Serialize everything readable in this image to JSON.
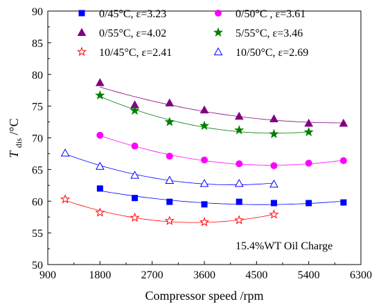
{
  "chart_data": {
    "type": "scatter",
    "title": "",
    "xlabel": "Compressor speed /rpm",
    "ylabel_main": "T",
    "ylabel_sub": "dis",
    "ylabel_unit": " /°C",
    "xlim": [
      900,
      6300
    ],
    "ylim": [
      50,
      90
    ],
    "xticks": [
      900,
      1800,
      2700,
      3600,
      4500,
      5400,
      6300
    ],
    "yticks": [
      50,
      55,
      60,
      65,
      70,
      75,
      80,
      85,
      90
    ],
    "xtick_labels": [
      "900",
      "1800",
      "2700",
      "3600",
      "4500",
      "5400",
      "6300"
    ],
    "ytick_labels": [
      "50",
      "55",
      "60",
      "65",
      "70",
      "75",
      "80",
      "85",
      "90"
    ],
    "grid": false,
    "legend_position": "top",
    "annotation": "15.4%WT Oil Charge",
    "series": [
      {
        "name": "0/45°C, ε=3.23",
        "marker": "square",
        "color": "#0000ff",
        "fill": true,
        "x": [
          1800,
          2400,
          3000,
          3600,
          4200,
          4800,
          5400,
          6000
        ],
        "y": [
          62.0,
          60.5,
          59.9,
          59.5,
          59.9,
          59.7,
          59.7,
          59.8
        ]
      },
      {
        "name": "0/50°C , ε=3.61",
        "marker": "circle",
        "color": "#ff00ff",
        "fill": true,
        "x": [
          1800,
          2400,
          3000,
          3600,
          4200,
          4800,
          5400,
          6000
        ],
        "y": [
          70.4,
          68.7,
          67.1,
          66.5,
          65.9,
          65.6,
          66.0,
          66.4
        ]
      },
      {
        "name": "0/55°C, ε=4.02",
        "marker": "triangle",
        "color": "#800080",
        "fill": true,
        "x": [
          1800,
          2400,
          3000,
          3600,
          4200,
          4800,
          5400,
          6000
        ],
        "y": [
          78.7,
          75.2,
          75.5,
          74.4,
          73.4,
          73.0,
          72.3,
          72.3
        ]
      },
      {
        "name": "5/55°C, ε=3.46",
        "marker": "star",
        "color": "#008000",
        "fill": true,
        "x": [
          1800,
          2400,
          3000,
          3600,
          4200,
          4800,
          5400
        ],
        "y": [
          76.7,
          74.3,
          72.5,
          71.9,
          71.2,
          70.6,
          70.9
        ]
      },
      {
        "name": "10/45°C, ε=2.41",
        "marker": "star",
        "color": "#ff0000",
        "fill": false,
        "x": [
          1200,
          1800,
          2400,
          3000,
          3600,
          4200,
          4800
        ],
        "y": [
          60.3,
          58.2,
          57.4,
          56.9,
          56.7,
          57.0,
          57.9
        ]
      },
      {
        "name": "10/50°C, ε=2.69",
        "marker": "triangle",
        "color": "#0000ff",
        "fill": false,
        "x": [
          1200,
          1800,
          2400,
          3000,
          3600,
          4200,
          4800
        ],
        "y": [
          67.6,
          65.5,
          64.1,
          63.3,
          62.8,
          62.8,
          62.7
        ]
      }
    ]
  }
}
